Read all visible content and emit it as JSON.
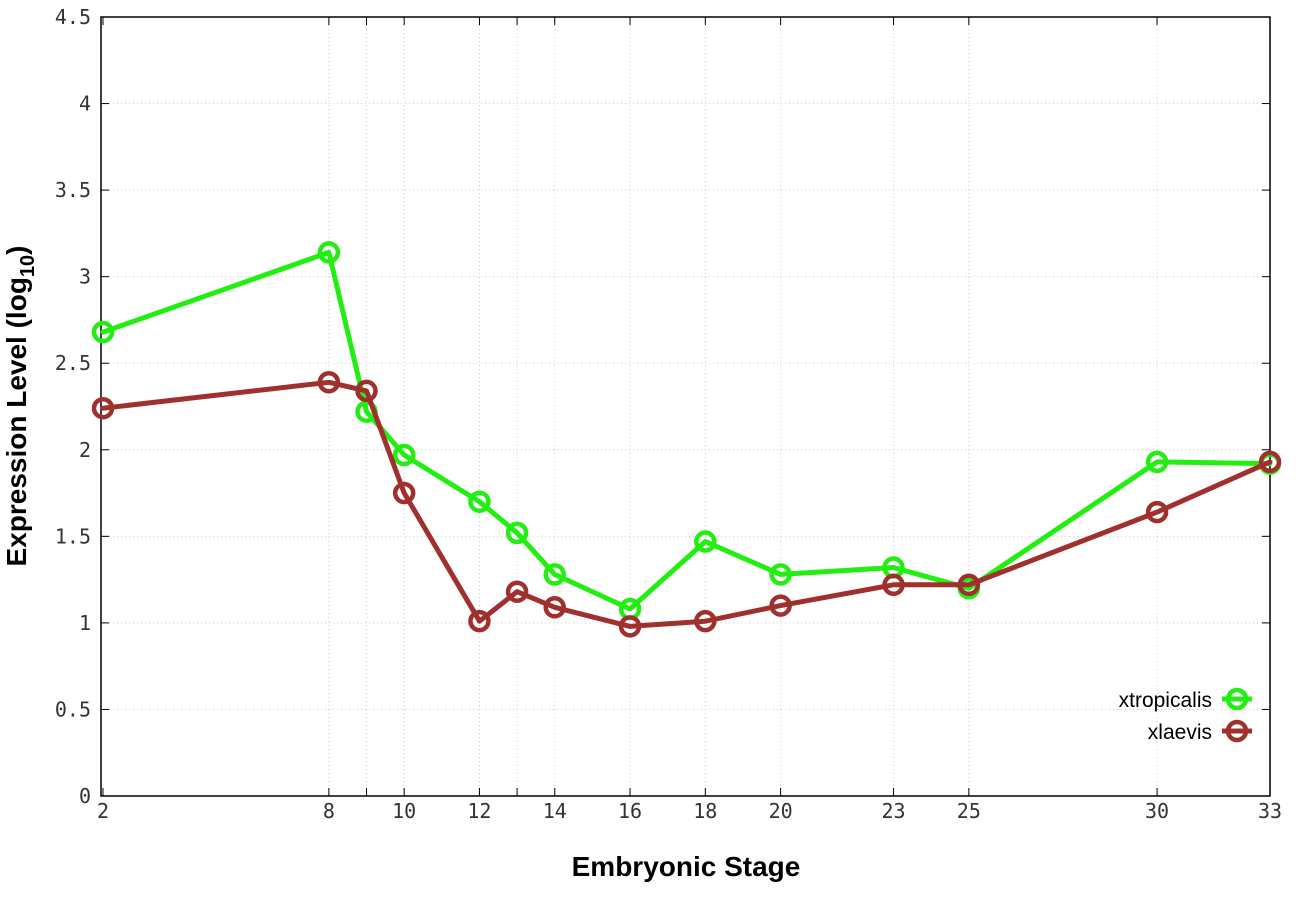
{
  "chart_data": {
    "type": "line",
    "xlabel": "Embryonic Stage",
    "ylabel_main": "Expression Level (log",
    "ylabel_sub": "10",
    "ylabel_close": ")",
    "x_ticks": [
      2,
      8,
      10,
      12,
      14,
      16,
      18,
      20,
      23,
      25,
      30,
      33
    ],
    "x_tick_labels": [
      "2",
      "8",
      "10",
      "12",
      "14",
      "16",
      "18",
      "20",
      "23",
      "25",
      "30",
      "33"
    ],
    "x_grid": [
      2,
      8,
      9,
      10,
      12,
      13,
      14,
      16,
      18,
      20,
      23,
      25,
      30,
      33
    ],
    "y_ticks": [
      0,
      0.5,
      1,
      1.5,
      2,
      2.5,
      3,
      3.5,
      4,
      4.5
    ],
    "y_tick_labels": [
      "0",
      "0.5",
      "1",
      "1.5",
      "2",
      "2.5",
      "3",
      "3.5",
      "4",
      "4.5"
    ],
    "xlim": [
      2,
      33
    ],
    "ylim": [
      0,
      4.5
    ],
    "grid": true,
    "legend_position": "bottom-right",
    "series": [
      {
        "name": "xtropicalis",
        "color": "#22ee11",
        "x": [
          2,
          8,
          9,
          10,
          12,
          13,
          14,
          16,
          18,
          20,
          23,
          25,
          30,
          33
        ],
        "y": [
          2.68,
          3.14,
          2.22,
          1.97,
          1.7,
          1.52,
          1.28,
          1.08,
          1.47,
          1.28,
          1.32,
          1.2,
          1.93,
          1.92
        ]
      },
      {
        "name": "xlaevis",
        "color": "#a0302e",
        "x": [
          2,
          8,
          9,
          10,
          12,
          13,
          14,
          16,
          18,
          20,
          23,
          25,
          30,
          33
        ],
        "y": [
          2.24,
          2.39,
          2.34,
          1.75,
          1.01,
          1.18,
          1.09,
          0.98,
          1.01,
          1.1,
          1.22,
          1.22,
          1.64,
          1.93
        ]
      }
    ]
  }
}
